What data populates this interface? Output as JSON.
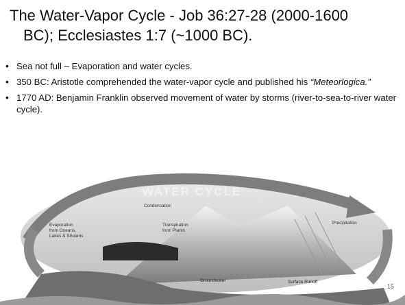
{
  "header": {
    "title": [
      "The Water-Vapor Cycle - Job 36:27-28 (2000-1600",
      "BC); Ecclesiastes 1:7 (~1000 BC)."
    ]
  },
  "bullets": [
    {
      "text": "Sea not full – Evaporation and water cycles."
    },
    {
      "text": "350 BC: Aristotle comprehended the water-vapor cycle and published his ",
      "italic": "“Meteorlogica.”"
    },
    {
      "text": "1770 AD: Benjamin Franklin observed movement of water by storms (river-to-sea-to-river water cycle)."
    }
  ],
  "diagram": {
    "title": "WATER CYCLE",
    "labels": [
      [
        "Condensation"
      ],
      [
        "Transpiration",
        "from Plants"
      ],
      [
        "Evaporation",
        "from Oceans,",
        "Lakes & Streams"
      ],
      [
        "Precipitation"
      ],
      [
        "Groundwater"
      ],
      [
        "Surface Runoff"
      ]
    ]
  },
  "footer": {
    "slide_number": "15"
  }
}
